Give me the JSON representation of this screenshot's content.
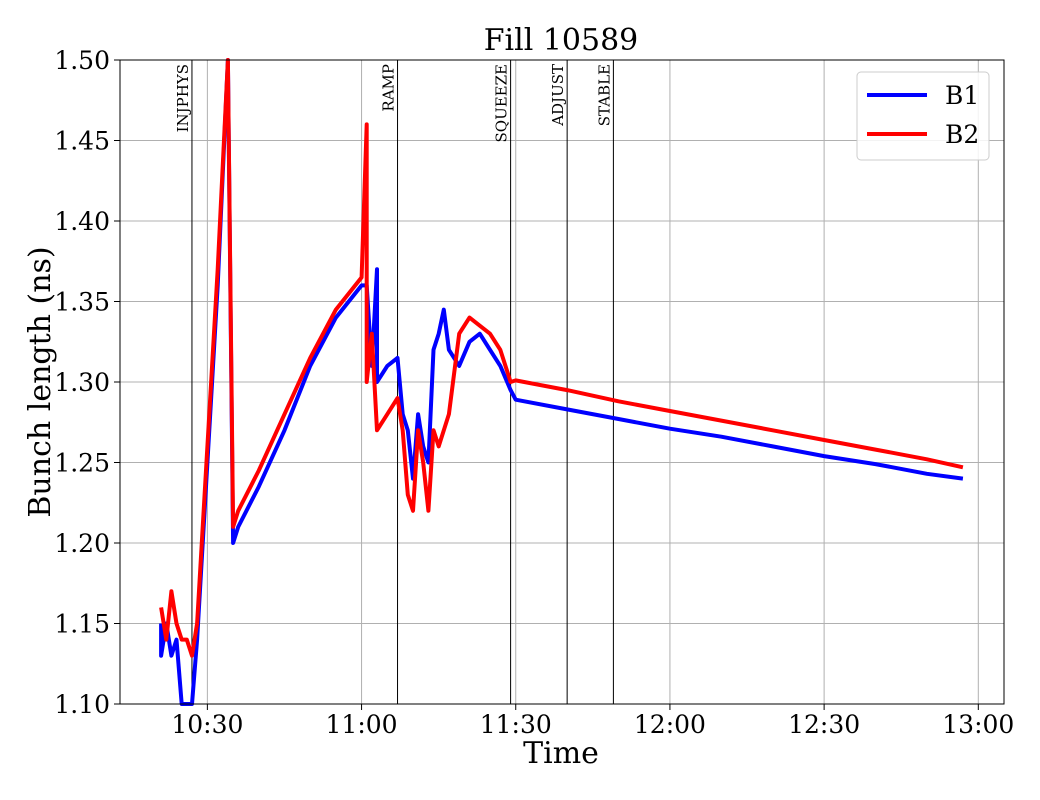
{
  "chart_data": {
    "type": "line",
    "title": "Fill 10589",
    "xlabel": "Time",
    "ylabel": "Bunch length (ns)",
    "xlim": [
      "10:13",
      "13:05"
    ],
    "ylim": [
      1.1,
      1.5
    ],
    "grid": true,
    "legend_position": "top-right",
    "x_ticks": [
      "10:30",
      "11:00",
      "11:30",
      "12:00",
      "12:30",
      "13:00"
    ],
    "y_ticks": [
      "1.10",
      "1.15",
      "1.20",
      "1.25",
      "1.30",
      "1.35",
      "1.40",
      "1.45",
      "1.50"
    ],
    "phases": [
      {
        "label": "INJPHYS",
        "time": "10:27"
      },
      {
        "label": "RAMP",
        "time": "11:07"
      },
      {
        "label": "SQUEEZE",
        "time": "11:29"
      },
      {
        "label": "ADJUST",
        "time": "11:40"
      },
      {
        "label": "STABLE",
        "time": "11:49"
      }
    ],
    "series": [
      {
        "name": "B1",
        "color": "#0000ff",
        "points": [
          [
            "10:21",
            1.15
          ],
          [
            "10:21",
            1.13
          ],
          [
            "10:22",
            1.15
          ],
          [
            "10:23",
            1.13
          ],
          [
            "10:24",
            1.14
          ],
          [
            "10:25",
            1.1
          ],
          [
            "10:27",
            1.1
          ],
          [
            "10:28",
            1.14
          ],
          [
            "10:30",
            1.25
          ],
          [
            "10:32",
            1.36
          ],
          [
            "10:34",
            1.5
          ],
          [
            "10:35",
            1.2
          ],
          [
            "10:36",
            1.21
          ],
          [
            "10:40",
            1.235
          ],
          [
            "10:45",
            1.27
          ],
          [
            "10:50",
            1.31
          ],
          [
            "10:55",
            1.34
          ],
          [
            "11:00",
            1.36
          ],
          [
            "11:01",
            1.36
          ],
          [
            "11:02",
            1.31
          ],
          [
            "11:03",
            1.37
          ],
          [
            "11:03",
            1.3
          ],
          [
            "11:05",
            1.31
          ],
          [
            "11:07",
            1.315
          ],
          [
            "11:08",
            1.28
          ],
          [
            "11:09",
            1.27
          ],
          [
            "11:10",
            1.24
          ],
          [
            "11:11",
            1.28
          ],
          [
            "11:12",
            1.26
          ],
          [
            "11:13",
            1.25
          ],
          [
            "11:14",
            1.32
          ],
          [
            "11:15",
            1.33
          ],
          [
            "11:16",
            1.345
          ],
          [
            "11:17",
            1.32
          ],
          [
            "11:19",
            1.31
          ],
          [
            "11:21",
            1.325
          ],
          [
            "11:23",
            1.33
          ],
          [
            "11:25",
            1.32
          ],
          [
            "11:27",
            1.31
          ],
          [
            "11:29",
            1.295
          ],
          [
            "11:30",
            1.289
          ],
          [
            "11:40",
            1.283
          ],
          [
            "11:50",
            1.277
          ],
          [
            "12:00",
            1.271
          ],
          [
            "12:10",
            1.266
          ],
          [
            "12:20",
            1.26
          ],
          [
            "12:30",
            1.254
          ],
          [
            "12:40",
            1.249
          ],
          [
            "12:50",
            1.243
          ],
          [
            "12:57",
            1.24
          ]
        ]
      },
      {
        "name": "B2",
        "color": "#ff0000",
        "points": [
          [
            "10:21",
            1.16
          ],
          [
            "10:22",
            1.14
          ],
          [
            "10:23",
            1.17
          ],
          [
            "10:24",
            1.15
          ],
          [
            "10:25",
            1.14
          ],
          [
            "10:26",
            1.14
          ],
          [
            "10:27",
            1.13
          ],
          [
            "10:28",
            1.15
          ],
          [
            "10:30",
            1.26
          ],
          [
            "10:32",
            1.37
          ],
          [
            "10:34",
            1.5
          ],
          [
            "10:35",
            1.21
          ],
          [
            "10:36",
            1.22
          ],
          [
            "10:40",
            1.245
          ],
          [
            "10:45",
            1.28
          ],
          [
            "10:50",
            1.315
          ],
          [
            "10:55",
            1.345
          ],
          [
            "11:00",
            1.365
          ],
          [
            "11:01",
            1.46
          ],
          [
            "11:01",
            1.3
          ],
          [
            "11:02",
            1.33
          ],
          [
            "11:03",
            1.27
          ],
          [
            "11:05",
            1.28
          ],
          [
            "11:07",
            1.29
          ],
          [
            "11:08",
            1.27
          ],
          [
            "11:09",
            1.23
          ],
          [
            "11:10",
            1.22
          ],
          [
            "11:11",
            1.27
          ],
          [
            "11:12",
            1.25
          ],
          [
            "11:13",
            1.22
          ],
          [
            "11:14",
            1.27
          ],
          [
            "11:15",
            1.26
          ],
          [
            "11:17",
            1.28
          ],
          [
            "11:19",
            1.33
          ],
          [
            "11:21",
            1.34
          ],
          [
            "11:23",
            1.335
          ],
          [
            "11:25",
            1.33
          ],
          [
            "11:27",
            1.32
          ],
          [
            "11:29",
            1.3
          ],
          [
            "11:30",
            1.301
          ],
          [
            "11:40",
            1.295
          ],
          [
            "11:50",
            1.288
          ],
          [
            "12:00",
            1.282
          ],
          [
            "12:10",
            1.276
          ],
          [
            "12:20",
            1.27
          ],
          [
            "12:30",
            1.264
          ],
          [
            "12:40",
            1.258
          ],
          [
            "12:50",
            1.252
          ],
          [
            "12:57",
            1.247
          ]
        ]
      }
    ]
  }
}
